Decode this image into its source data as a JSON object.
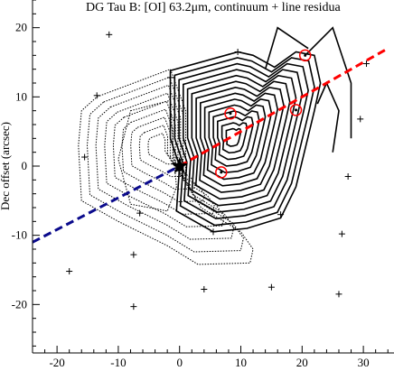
{
  "chart_data": {
    "type": "contour",
    "title": "DG Tau B:  [OI] 63.2μm, continuum + line residua",
    "xlabel": "",
    "ylabel": "Dec offset (arcsec)",
    "xlim": [
      -24,
      35
    ],
    "ylim": [
      -27,
      24
    ],
    "x_ticks": [
      -20,
      -10,
      0,
      10,
      20,
      30
    ],
    "y_ticks": [
      -20,
      -10,
      0,
      10,
      20
    ],
    "grid": false,
    "colors": {
      "axis": "#000000",
      "solid_contour": "#000000",
      "dotted_contour": "#000000",
      "redshifted_jet": "#ff0000",
      "blueshifted_jet": "#0a0a8c",
      "peak_marker": "#ff0000"
    },
    "source_position": {
      "x": 0,
      "y": 0,
      "symbol": "star"
    },
    "jet_axis": {
      "red": {
        "from": [
          0,
          0
        ],
        "to": [
          34,
          17
        ]
      },
      "blue": {
        "from": [
          -24,
          -11
        ],
        "to": [
          0,
          0
        ]
      }
    },
    "peaks": [
      {
        "x": 20.5,
        "y": 16
      },
      {
        "x": 8.3,
        "y": 7.6
      },
      {
        "x": 19.0,
        "y": 8.1
      },
      {
        "x": 6.8,
        "y": -0.9
      }
    ],
    "pointings": [
      {
        "x": -11.5,
        "y": 19
      },
      {
        "x": 9.5,
        "y": 16.5
      },
      {
        "x": 30.5,
        "y": 14.8
      },
      {
        "x": -13.5,
        "y": 10.2
      },
      {
        "x": -1.5,
        "y": 12.8
      },
      {
        "x": 29.5,
        "y": 6.8
      },
      {
        "x": -15.5,
        "y": 1.3
      },
      {
        "x": 27.5,
        "y": -1.5
      },
      {
        "x": -6.5,
        "y": -6.8
      },
      {
        "x": 5.5,
        "y": -9.5
      },
      {
        "x": 16.5,
        "y": -7
      },
      {
        "x": 26.5,
        "y": -9.8
      },
      {
        "x": -7.5,
        "y": -12.8
      },
      {
        "x": -18,
        "y": -15.2
      },
      {
        "x": 4,
        "y": -17.8
      },
      {
        "x": 15,
        "y": -17.5
      },
      {
        "x": 26,
        "y": -18.5
      },
      {
        "x": -7.5,
        "y": -20.3
      }
    ],
    "contours": {
      "solid_center": [
        8.6,
        4.2
      ],
      "solid_levels": 14,
      "solid_outer": [
        [
          0,
          0
        ],
        [
          -1.5,
          4
        ],
        [
          -1.5,
          13.8
        ],
        [
          9.5,
          16.5
        ],
        [
          12,
          16
        ],
        [
          15.5,
          14.3
        ],
        [
          19,
          16.5
        ],
        [
          22,
          16
        ],
        [
          23,
          12
        ],
        [
          22,
          8
        ],
        [
          20.5,
          2.5
        ],
        [
          19,
          -3
        ],
        [
          16.5,
          -7.5
        ],
        [
          11,
          -9
        ],
        [
          5.5,
          -9.5
        ],
        [
          -0.5,
          -6.5
        ]
      ],
      "dotted_outer": [
        [
          -13.5,
          10
        ],
        [
          -1.5,
          14
        ],
        [
          1,
          8
        ],
        [
          1,
          -2
        ],
        [
          3.5,
          -6
        ],
        [
          10,
          -9.5
        ],
        [
          12,
          -12
        ],
        [
          11.5,
          -14
        ],
        [
          3,
          -14.2
        ],
        [
          -2,
          -11.5
        ],
        [
          -10,
          -8
        ],
        [
          -16,
          -5
        ],
        [
          -16.5,
          3
        ],
        [
          -16,
          8
        ]
      ],
      "dotted_inner": [
        [
          -8,
          8
        ],
        [
          -1.5,
          9.5
        ],
        [
          -1,
          2
        ],
        [
          -0.5,
          -3
        ],
        [
          -2,
          -6.5
        ],
        [
          -8,
          -5.5
        ],
        [
          -10,
          1
        ]
      ],
      "dotted_levels": 9
    }
  }
}
